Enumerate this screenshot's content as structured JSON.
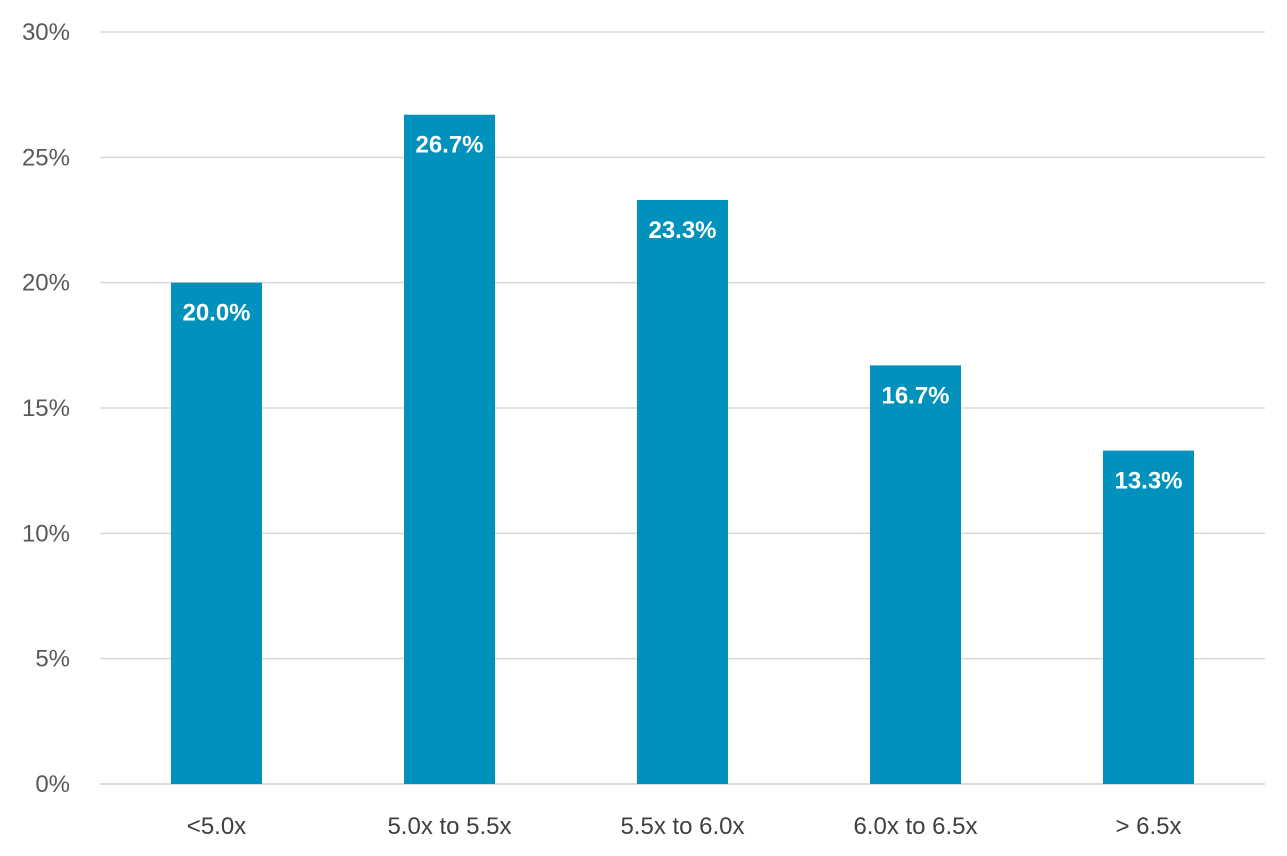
{
  "chart_data": {
    "type": "bar",
    "title": "",
    "xlabel": "",
    "ylabel": "",
    "categories": [
      "<5.0x",
      "5.0x to 5.5x",
      "5.5x to 6.0x",
      "6.0x to 6.5x",
      "> 6.5x"
    ],
    "values": [
      20.0,
      26.7,
      23.3,
      16.7,
      13.3
    ],
    "data_labels": [
      "20.0%",
      "26.7%",
      "23.3%",
      "16.7%",
      "13.3%"
    ],
    "ylim": [
      0,
      30
    ],
    "yticks": [
      0,
      5,
      10,
      15,
      20,
      25,
      30
    ],
    "ytick_labels": [
      "0%",
      "5%",
      "10%",
      "15%",
      "20%",
      "25%",
      "30%"
    ],
    "grid": true,
    "legend": "none",
    "bar_color": "#0091bd"
  }
}
